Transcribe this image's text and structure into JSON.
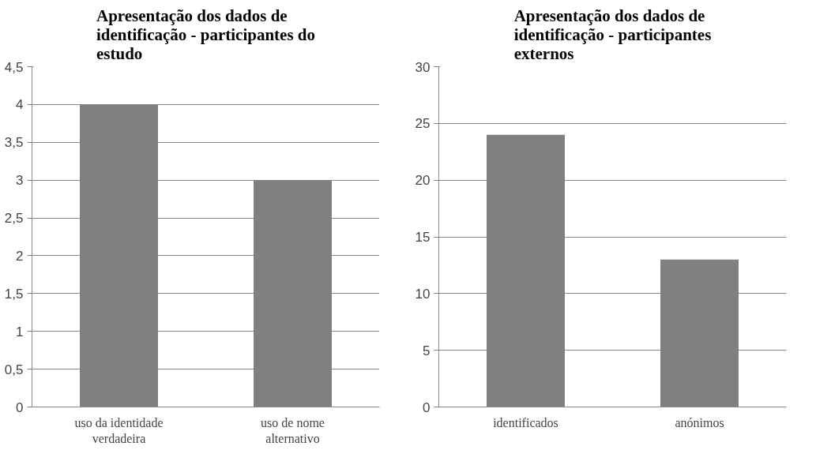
{
  "chart_data": [
    {
      "type": "bar",
      "title": "Apresentação dos dados de identificação - participantes do estudo",
      "categories": [
        "uso da identidade verdadeira",
        "uso de nome alternativo"
      ],
      "values": [
        4,
        3
      ],
      "color": "#808080",
      "ylim": [
        0,
        4.5
      ],
      "yticks": [
        0,
        {
          "value": 0.5,
          "label": "0,5"
        },
        1,
        {
          "value": 1.5,
          "label": "1,5"
        },
        2,
        {
          "value": 2.5,
          "label": "2,5"
        },
        3,
        {
          "value": 3.5,
          "label": "3,5"
        },
        4,
        {
          "value": 4.5,
          "label": "4,5"
        }
      ],
      "grid": "y"
    },
    {
      "type": "bar",
      "title": "Apresentação dos dados de identificação - participantes externos",
      "categories": [
        "identificados",
        "anónimos"
      ],
      "values": [
        24,
        13
      ],
      "color": "#808080",
      "ylim": [
        0,
        30
      ],
      "yticks": [
        0,
        5,
        10,
        15,
        20,
        25,
        30
      ],
      "grid": "y"
    }
  ]
}
